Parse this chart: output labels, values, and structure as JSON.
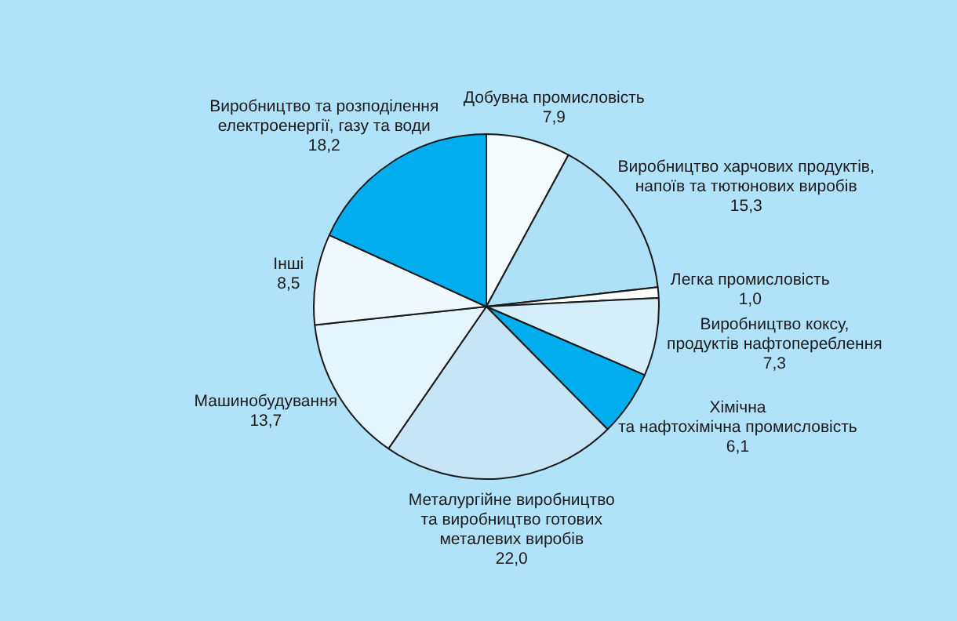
{
  "chart_data": {
    "type": "pie",
    "categories": [
      "Добувна промисловість",
      "Виробництво харчових продуктів,\nнапоїв та тютюнових виробів",
      "Легка промисловість",
      "Виробництво коксу,\nпродуктів нафтопереблення",
      "Хімічна\nта нафтохімічна промисловість",
      "Металургійне виробництво\nта виробництво готових\nметалевих виробів",
      "Машинобудування",
      "Інші",
      "Виробництво та розподілення\nелектроенергії, газу та води"
    ],
    "values": [
      7.9,
      15.3,
      1.0,
      7.3,
      6.1,
      22.0,
      13.7,
      8.5,
      18.2
    ],
    "value_labels": [
      "7,9",
      "15,3",
      "1,0",
      "7,3",
      "6,1",
      "22,0",
      "13,7",
      "8,5",
      "18,2"
    ],
    "colors": [
      "#f4fbff",
      "#aee0f8",
      "#ffffff",
      "#d4eefa",
      "#00aeef",
      "#c6e6f6",
      "#e4f5fd",
      "#f0f9ff",
      "#00aeef"
    ],
    "legend": false
  }
}
